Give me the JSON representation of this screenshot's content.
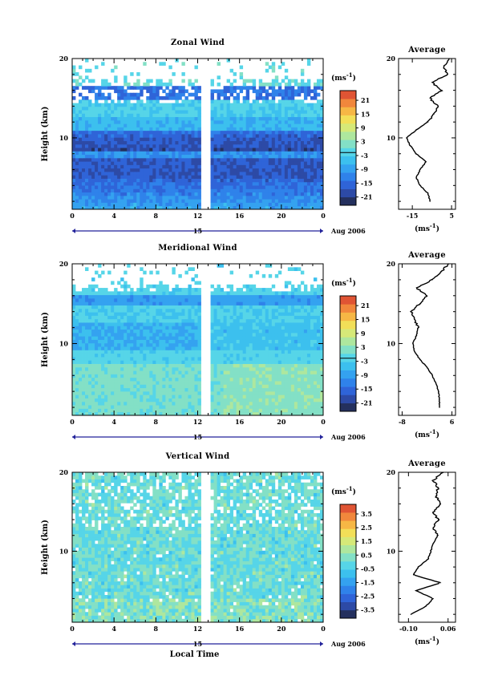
{
  "colors": {
    "colorbar": [
      "#24305e",
      "#2d4aa6",
      "#2f64d8",
      "#2f82ea",
      "#34a2f0",
      "#3cc0ee",
      "#56d5e8",
      "#83e0c6",
      "#aee79e",
      "#d6e978",
      "#f2df58",
      "#f6b745",
      "#f1873c",
      "#e05434"
    ]
  },
  "chart_data": [
    {
      "type": "heatmap",
      "title": "Zonal Wind",
      "ylabel": "Height (km)",
      "xlabel": "",
      "x_ticks": [
        "0",
        "4",
        "8",
        "12",
        "16",
        "20",
        "0"
      ],
      "y_ticks": [
        "20",
        "10"
      ],
      "xlim": [
        0,
        24
      ],
      "ylim": [
        1,
        20
      ],
      "date_marker": "15",
      "date_label": "Aug 2006",
      "colorbar": {
        "unit_base": "(ms",
        "unit_exp": "-1",
        "unit_close": ")",
        "ticks": [
          "21",
          "15",
          "9",
          "3",
          "-3",
          "-9",
          "-15",
          "-21"
        ],
        "range": [
          -24,
          24
        ]
      },
      "profile": {
        "title": "Average",
        "x_ticks": [
          "-15",
          "5"
        ],
        "xlim": [
          -22,
          7
        ],
        "xlabel_base": "(ms",
        "xlabel_exp": "-1",
        "xlabel_close": ")",
        "y_ticks": [
          "20",
          "10"
        ],
        "heights": [
          2,
          3,
          4,
          5,
          6,
          7,
          8,
          9,
          10,
          11,
          12,
          13,
          14,
          15,
          16,
          17,
          18,
          19,
          20
        ],
        "values": [
          -6,
          -7,
          -11,
          -13,
          -11,
          -8,
          -13,
          -16,
          -18,
          -13,
          -7,
          -4,
          -2,
          -6,
          0,
          -5,
          3,
          1,
          4
        ]
      }
    },
    {
      "type": "heatmap",
      "title": "Meridional Wind",
      "ylabel": "Height (km)",
      "xlabel": "",
      "x_ticks": [
        "0",
        "4",
        "8",
        "12",
        "16",
        "20",
        "0"
      ],
      "y_ticks": [
        "20",
        "10"
      ],
      "xlim": [
        0,
        24
      ],
      "ylim": [
        1,
        20
      ],
      "date_marker": "15",
      "date_label": "Aug 2006",
      "colorbar": {
        "unit_base": "(ms",
        "unit_exp": "-1",
        "unit_close": ")",
        "ticks": [
          "21",
          "15",
          "9",
          "3",
          "-3",
          "-9",
          "-15",
          "-21"
        ],
        "range": [
          -24,
          24
        ]
      },
      "profile": {
        "title": "Average",
        "x_ticks": [
          "-8",
          "6"
        ],
        "xlim": [
          -9,
          7
        ],
        "xlabel_base": "(ms",
        "xlabel_exp": "-1",
        "xlabel_close": ")",
        "y_ticks": [
          "20",
          "10"
        ],
        "heights": [
          2,
          3,
          4,
          5,
          6,
          7,
          8,
          9,
          10,
          11,
          12,
          13,
          14,
          15,
          16,
          17,
          18,
          19,
          20
        ],
        "values": [
          2.5,
          2.5,
          2.2,
          1.5,
          0.5,
          -1,
          -3,
          -4.5,
          -5,
          -4,
          -3.5,
          -4.5,
          -5.5,
          -3,
          -1,
          -4,
          0.5,
          3,
          5
        ]
      }
    },
    {
      "type": "heatmap",
      "title": "Vertical Wind",
      "ylabel": "Height (km)",
      "xlabel": "Local Time",
      "x_ticks": [
        "0",
        "4",
        "8",
        "12",
        "16",
        "20",
        "0"
      ],
      "y_ticks": [
        "20",
        "10"
      ],
      "xlim": [
        0,
        24
      ],
      "ylim": [
        1,
        20
      ],
      "date_marker": "15",
      "date_label": "Aug 2006",
      "colorbar": {
        "unit_base": "(ms",
        "unit_exp": "-1",
        "unit_close": ")",
        "ticks": [
          "3.5",
          "2.5",
          "1.5",
          "0.5",
          "-0.5",
          "-1.5",
          "-2.5",
          "-3.5"
        ],
        "range": [
          -4,
          4
        ]
      },
      "profile": {
        "title": "Average",
        "x_ticks": [
          "-0.10",
          "0.06"
        ],
        "xlim": [
          -0.14,
          0.09
        ],
        "xlabel_base": "(ms",
        "xlabel_exp": "-1",
        "xlabel_close": ")",
        "y_ticks": [
          "20",
          "10"
        ],
        "heights": [
          2,
          3,
          4,
          5,
          6,
          7,
          8,
          9,
          10,
          11,
          12,
          13,
          14,
          15,
          16,
          17,
          18,
          19,
          20
        ],
        "values": [
          -0.09,
          -0.03,
          0.0,
          -0.07,
          0.03,
          -0.08,
          -0.06,
          -0.02,
          -0.01,
          0.0,
          0.02,
          0.0,
          0.02,
          0.0,
          0.03,
          0.01,
          0.02,
          0.0,
          0.04
        ]
      }
    }
  ]
}
